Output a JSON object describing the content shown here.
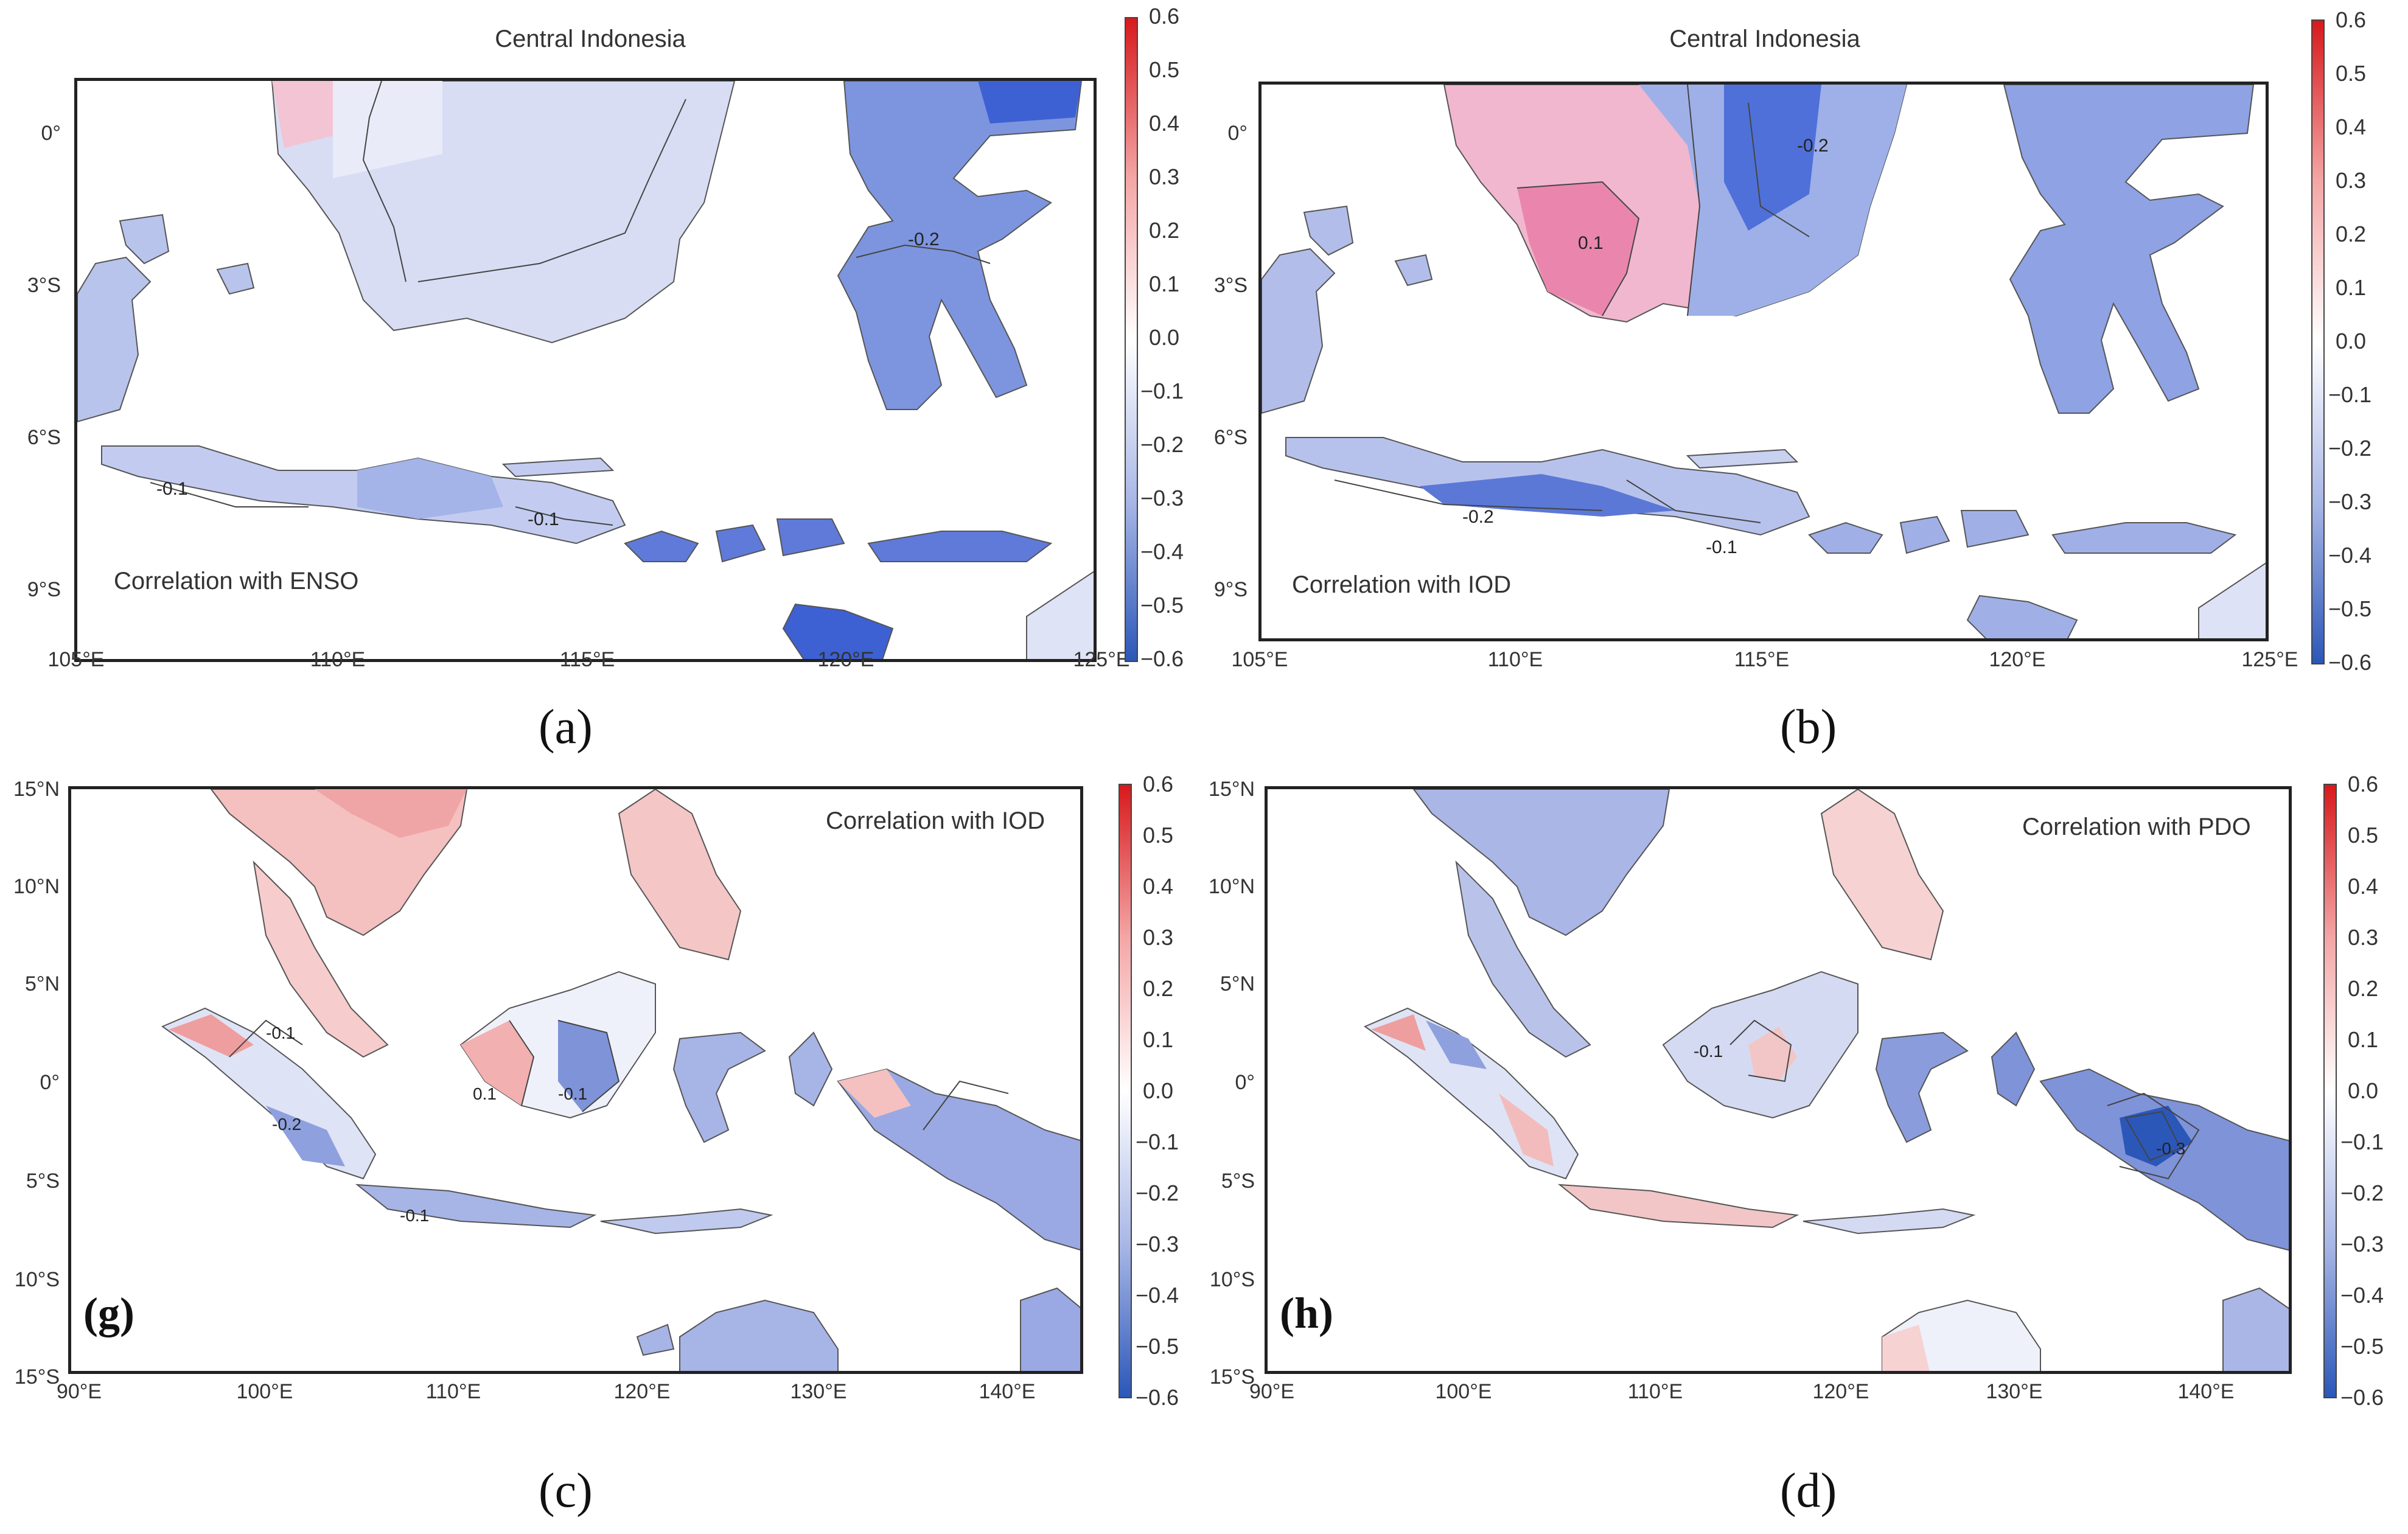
{
  "panels": {
    "a": {
      "title": "Central Indonesia",
      "correlation_label": "Correlation with ENSO",
      "panel_label": "(a)",
      "y_ticks": [
        "0°",
        "3°S",
        "6°S",
        "9°S"
      ],
      "x_ticks": [
        "105°E",
        "110°E",
        "115°E",
        "120°E",
        "125°E"
      ],
      "contour_labels": [
        "-0.2",
        "-0.1",
        "-0.1"
      ],
      "colorbar": [
        "0.6",
        "0.5",
        "0.4",
        "0.3",
        "0.2",
        "0.1",
        "0.0",
        "−0.1",
        "−0.2",
        "−0.3",
        "−0.4",
        "−0.5",
        "−0.6"
      ]
    },
    "b": {
      "title": "Central Indonesia",
      "correlation_label": "Correlation with IOD",
      "panel_label": "(b)",
      "y_ticks": [
        "0°",
        "3°S",
        "6°S",
        "9°S"
      ],
      "x_ticks": [
        "105°E",
        "110°E",
        "115°E",
        "120°E",
        "125°E"
      ],
      "contour_labels": [
        "0.1",
        "-0.2",
        "-0.2",
        "-0.1"
      ],
      "colorbar": [
        "0.6",
        "0.5",
        "0.4",
        "0.3",
        "0.2",
        "0.1",
        "0.0",
        "−0.1",
        "−0.2",
        "−0.3",
        "−0.4",
        "−0.5",
        "−0.6"
      ]
    },
    "c": {
      "correlation_label": "Correlation with IOD",
      "inner_label": "(g)",
      "panel_label": "(c)",
      "y_ticks": [
        "15°N",
        "10°N",
        "5°N",
        "0°",
        "5°S",
        "10°S",
        "15°S"
      ],
      "x_ticks": [
        "90°E",
        "100°E",
        "110°E",
        "120°E",
        "130°E",
        "140°E"
      ],
      "contour_labels": [
        "-0.1",
        "-0.2",
        "-0.1",
        "0.1",
        "-0.1"
      ],
      "colorbar": [
        "0.6",
        "0.5",
        "0.4",
        "0.3",
        "0.2",
        "0.1",
        "0.0",
        "−0.1",
        "−0.2",
        "−0.3",
        "−0.4",
        "−0.5",
        "−0.6"
      ]
    },
    "d": {
      "correlation_label": "Correlation with PDO",
      "inner_label": "(h)",
      "panel_label": "(d)",
      "y_ticks": [
        "15°N",
        "10°N",
        "5°N",
        "0°",
        "5°S",
        "10°S",
        "15°S"
      ],
      "x_ticks": [
        "90°E",
        "100°E",
        "110°E",
        "120°E",
        "130°E",
        "140°E"
      ],
      "contour_labels": [
        "-0.1",
        "-0.3"
      ],
      "colorbar": [
        "0.6",
        "0.5",
        "0.4",
        "0.3",
        "0.2",
        "0.1",
        "0.0",
        "−0.1",
        "−0.2",
        "−0.3",
        "−0.4",
        "−0.5",
        "−0.6"
      ]
    }
  },
  "colors": {
    "positive": "#d7191c",
    "negative": "#2b57b8",
    "neutral": "#ffffff"
  }
}
